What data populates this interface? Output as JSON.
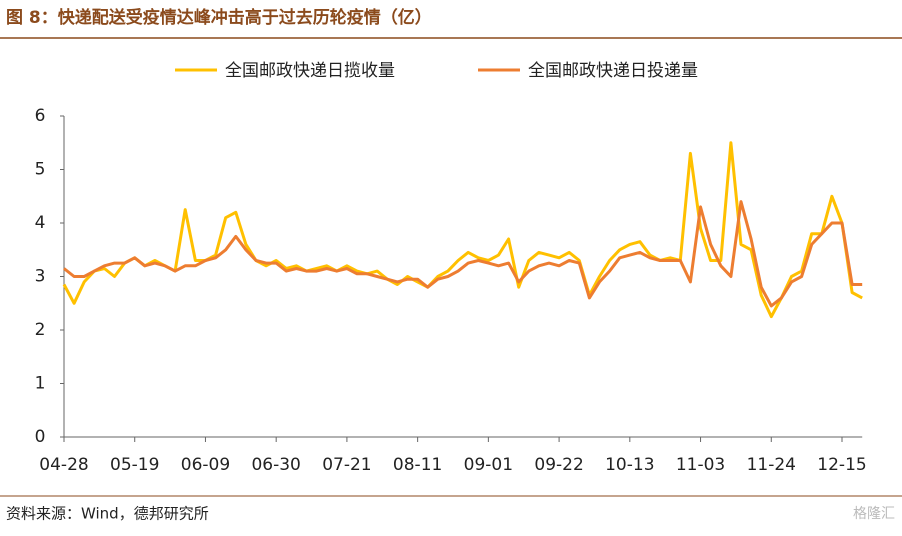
{
  "chart_data": {
    "type": "line",
    "title": "图 8：快递配送受疫情达峰冲击高于过去历轮疫情（亿）",
    "source": "资料来源：Wind，德邦研究所",
    "watermark": "格隆汇",
    "legend": "top",
    "categories": [
      "04-28",
      null,
      null,
      null,
      null,
      null,
      null,
      "05-19",
      null,
      null,
      null,
      null,
      null,
      null,
      "06-09",
      null,
      null,
      null,
      null,
      null,
      null,
      "06-30",
      null,
      null,
      null,
      null,
      null,
      null,
      "07-21",
      null,
      null,
      null,
      null,
      null,
      null,
      "08-11",
      null,
      null,
      null,
      null,
      null,
      null,
      "09-01",
      null,
      null,
      null,
      null,
      null,
      null,
      "09-22",
      null,
      null,
      null,
      null,
      null,
      null,
      "10-13",
      null,
      null,
      null,
      null,
      null,
      null,
      "11-03",
      null,
      null,
      null,
      null,
      null,
      null,
      "11-24",
      null,
      null,
      null,
      null,
      null,
      null,
      "12-15",
      null,
      null
    ],
    "series": [
      {
        "name": "全国邮政快递日揽收量",
        "color": "#FFC000",
        "values": [
          2.85,
          2.5,
          2.9,
          3.1,
          3.15,
          3.0,
          3.25,
          3.35,
          3.2,
          3.3,
          3.2,
          3.1,
          4.25,
          3.3,
          3.3,
          3.4,
          4.1,
          4.2,
          3.6,
          3.3,
          3.2,
          3.3,
          3.15,
          3.2,
          3.1,
          3.15,
          3.2,
          3.1,
          3.2,
          3.1,
          3.05,
          3.1,
          2.95,
          2.85,
          3.0,
          2.9,
          2.8,
          3.0,
          3.1,
          3.3,
          3.45,
          3.35,
          3.3,
          3.4,
          3.7,
          2.8,
          3.3,
          3.45,
          3.4,
          3.35,
          3.45,
          3.3,
          2.65,
          3.0,
          3.3,
          3.5,
          3.6,
          3.65,
          3.4,
          3.3,
          3.35,
          3.3,
          5.3,
          3.9,
          3.3,
          3.3,
          5.5,
          3.6,
          3.5,
          2.65,
          2.25,
          2.6,
          3.0,
          3.1,
          3.8,
          3.8,
          4.5,
          4.0,
          2.7,
          2.6
        ]
      },
      {
        "name": "全国邮政快递日投递量",
        "color": "#ED7D31",
        "values": [
          3.15,
          3.0,
          3.0,
          3.1,
          3.2,
          3.25,
          3.25,
          3.35,
          3.2,
          3.25,
          3.2,
          3.1,
          3.2,
          3.2,
          3.3,
          3.35,
          3.5,
          3.75,
          3.5,
          3.3,
          3.25,
          3.25,
          3.1,
          3.15,
          3.1,
          3.1,
          3.15,
          3.1,
          3.15,
          3.05,
          3.05,
          3.0,
          2.95,
          2.9,
          2.95,
          2.95,
          2.8,
          2.95,
          3.0,
          3.1,
          3.25,
          3.3,
          3.25,
          3.2,
          3.25,
          2.9,
          3.1,
          3.2,
          3.25,
          3.2,
          3.3,
          3.25,
          2.6,
          2.9,
          3.1,
          3.35,
          3.4,
          3.45,
          3.35,
          3.3,
          3.3,
          3.3,
          2.9,
          4.3,
          3.6,
          3.2,
          3.0,
          4.4,
          3.7,
          2.8,
          2.45,
          2.6,
          2.9,
          3.0,
          3.6,
          3.8,
          4.0,
          4.0,
          2.85,
          2.85
        ]
      }
    ],
    "ylim": [
      0,
      6
    ],
    "yticks": [
      0,
      1,
      2,
      3,
      4,
      5,
      6
    ],
    "grid": false
  }
}
